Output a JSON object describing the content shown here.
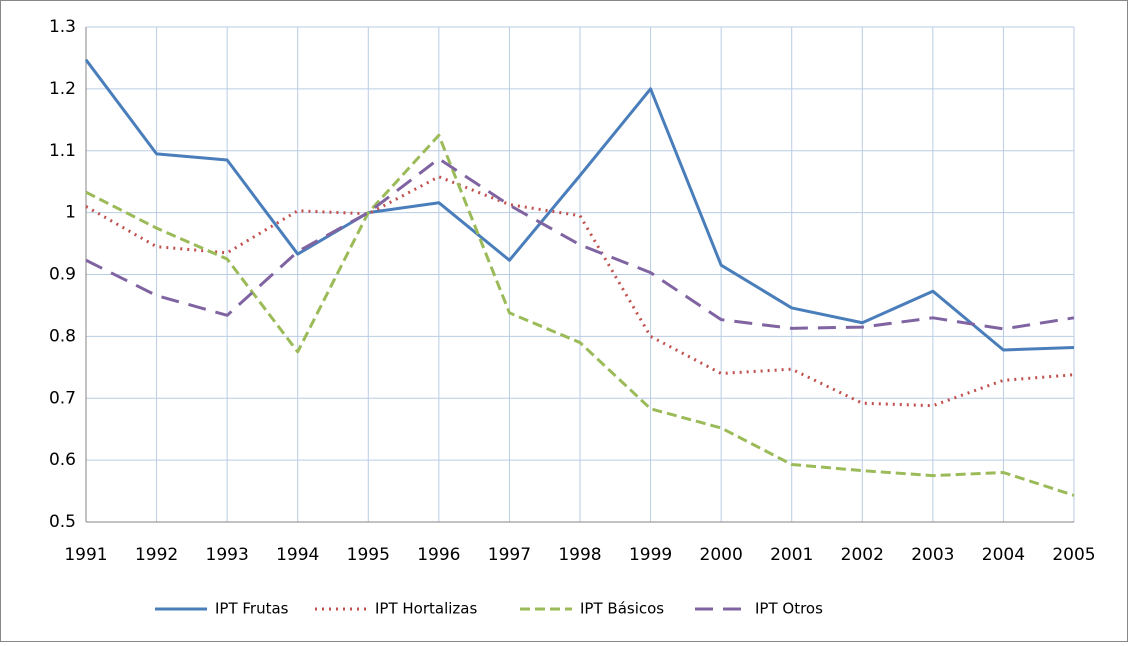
{
  "chart_data": {
    "type": "line",
    "categories": [
      "1991",
      "1992",
      "1993",
      "1994",
      "1995",
      "1996",
      "1997",
      "1998",
      "1999",
      "2000",
      "2001",
      "2002",
      "2003",
      "2004",
      "2005"
    ],
    "series": [
      {
        "name": "IPT Frutas",
        "color": "#4a7ebb",
        "line_style": "solid",
        "values": [
          1.247,
          1.095,
          1.085,
          0.933,
          1.0,
          1.016,
          0.923,
          1.06,
          1.2,
          0.915,
          0.846,
          0.822,
          0.873,
          0.778,
          0.782
        ]
      },
      {
        "name": "IPT Hortalizas",
        "color": "#c0504d",
        "line_style": "dotted",
        "values": [
          1.01,
          0.945,
          0.935,
          1.003,
          0.998,
          1.058,
          1.013,
          0.995,
          0.8,
          0.74,
          0.747,
          0.692,
          0.688,
          0.729,
          0.738
        ]
      },
      {
        "name": "IPT Básicos",
        "color": "#9bbb59",
        "line_style": "dashed",
        "values": [
          1.033,
          0.975,
          0.925,
          0.775,
          1.0,
          1.125,
          0.838,
          0.79,
          0.683,
          0.652,
          0.593,
          0.583,
          0.575,
          0.58,
          0.543
        ]
      },
      {
        "name": "IPT Otros",
        "color": "#8064a2",
        "line_style": "long-dash",
        "values": [
          0.923,
          0.866,
          0.834,
          0.937,
          1.0,
          1.087,
          1.012,
          0.948,
          0.903,
          0.827,
          0.813,
          0.815,
          0.83,
          0.812,
          0.83
        ]
      }
    ],
    "ylim": [
      0.5,
      1.3
    ],
    "yticks": [
      0.5,
      0.6,
      0.7,
      0.8,
      0.9,
      1,
      1.1,
      1.2,
      1.3
    ],
    "grid": true,
    "legend": "bottom"
  }
}
